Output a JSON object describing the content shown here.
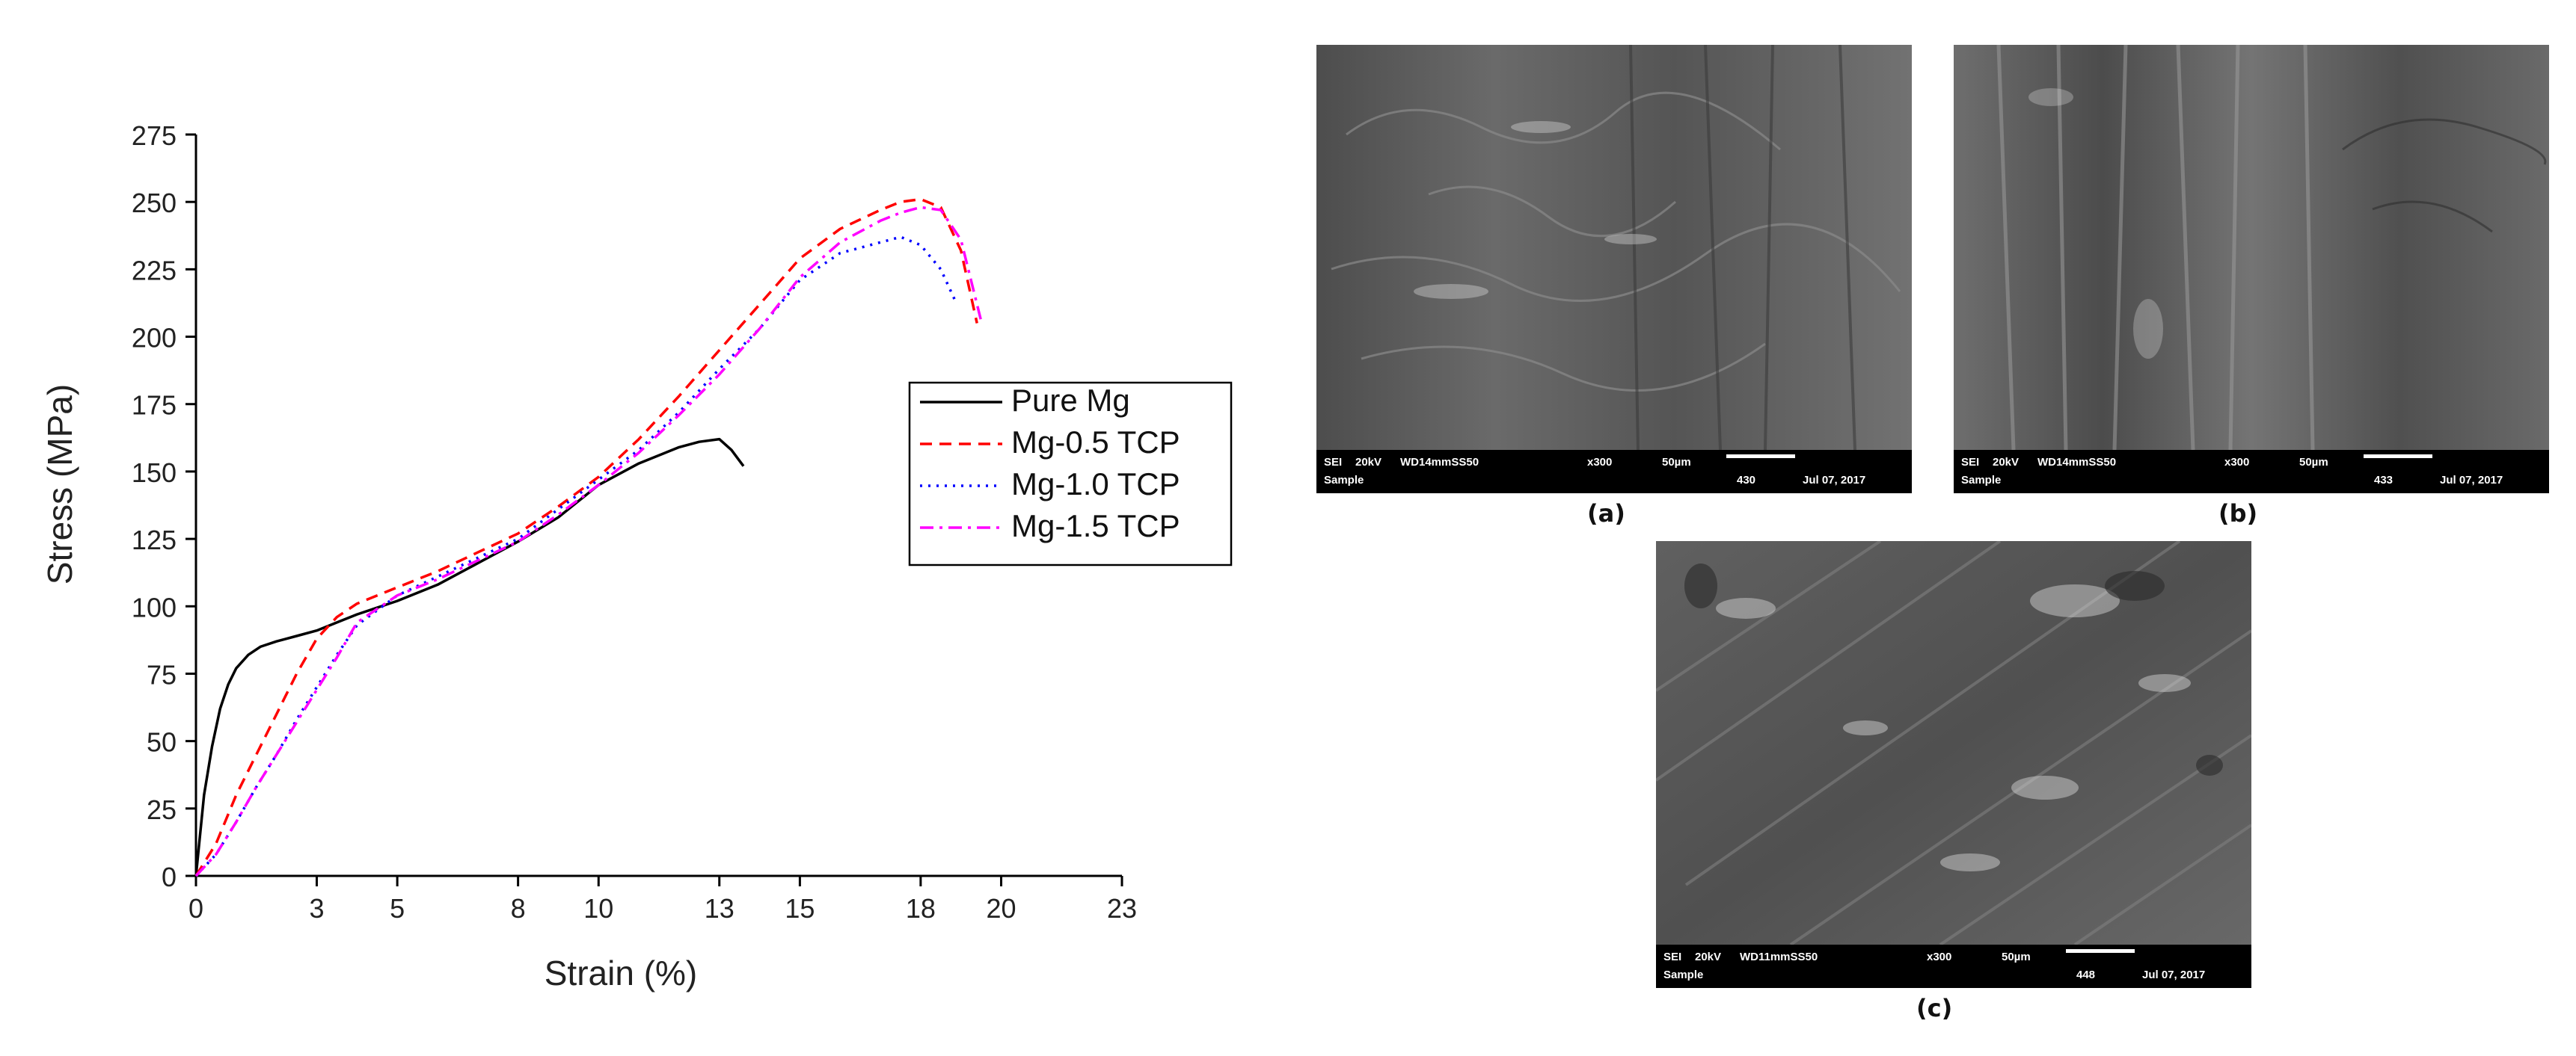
{
  "chart_data": {
    "type": "line",
    "xlabel": "Strain (%)",
    "ylabel": "Stress (MPa)",
    "xlim": [
      0,
      23
    ],
    "ylim": [
      0,
      275
    ],
    "xticks": [
      0,
      3,
      5,
      8,
      10,
      13,
      15,
      18,
      20,
      23
    ],
    "yticks": [
      0,
      25,
      50,
      75,
      100,
      125,
      150,
      175,
      200,
      225,
      250,
      275
    ],
    "grid": false,
    "legend_position": "right",
    "series": [
      {
        "name": "Pure Mg",
        "color": "#000000",
        "line_style": "solid",
        "x": [
          0,
          0.2,
          0.4,
          0.6,
          0.8,
          1.0,
          1.3,
          1.6,
          2.0,
          2.5,
          3.0,
          3.5,
          4.0,
          5.0,
          6.0,
          7.0,
          8.0,
          9.0,
          10.0,
          11.0,
          12.0,
          12.5,
          13.0,
          13.3,
          13.6
        ],
        "y": [
          0,
          30,
          48,
          62,
          71,
          77,
          82,
          85,
          87,
          89,
          91,
          94,
          97,
          102,
          108,
          116,
          124,
          133,
          145,
          153,
          159,
          161,
          162,
          158,
          152
        ]
      },
      {
        "name": "Mg-0.5 TCP",
        "color": "#ff0000",
        "line_style": "dashed",
        "x": [
          0,
          0.5,
          1.0,
          1.5,
          2.0,
          2.5,
          3.0,
          3.5,
          4.0,
          5.0,
          6.0,
          7.0,
          8.0,
          9.0,
          10.0,
          11.0,
          12.0,
          13.0,
          14.0,
          15.0,
          16.0,
          17.0,
          17.5,
          18.0,
          18.5,
          19.0,
          19.4
        ],
        "y": [
          0,
          12,
          30,
          45,
          60,
          75,
          88,
          96,
          101,
          107,
          113,
          120,
          127,
          137,
          148,
          162,
          178,
          195,
          212,
          229,
          240,
          247,
          250,
          251,
          248,
          232,
          205
        ]
      },
      {
        "name": "Mg-1.0 TCP",
        "color": "#0000ff",
        "line_style": "dotted",
        "x": [
          0,
          0.5,
          1.0,
          1.5,
          2.0,
          2.5,
          3.0,
          3.5,
          4.0,
          5.0,
          6.0,
          7.0,
          8.0,
          9.0,
          10.0,
          11.0,
          12.0,
          13.0,
          14.0,
          15.0,
          16.0,
          17.0,
          17.5,
          18.0,
          18.5,
          18.9
        ],
        "y": [
          0,
          8,
          20,
          33,
          45,
          58,
          70,
          82,
          93,
          104,
          111,
          118,
          125,
          136,
          147,
          158,
          172,
          188,
          203,
          221,
          231,
          235,
          237,
          234,
          225,
          212
        ]
      },
      {
        "name": "Mg-1.5 TCP",
        "color": "#ff00ff",
        "line_style": "dash-dot",
        "x": [
          0,
          0.5,
          1.0,
          1.5,
          2.0,
          2.5,
          3.0,
          3.5,
          4.0,
          5.0,
          6.0,
          7.0,
          8.0,
          9.0,
          10.0,
          11.0,
          12.0,
          13.0,
          14.0,
          15.0,
          16.0,
          17.0,
          17.5,
          18.0,
          18.5,
          19.0,
          19.5
        ],
        "y": [
          0,
          8,
          20,
          33,
          45,
          57,
          69,
          81,
          94,
          104,
          110,
          117,
          124,
          134,
          145,
          157,
          171,
          186,
          203,
          222,
          235,
          243,
          246,
          248,
          247,
          236,
          206
        ]
      }
    ]
  },
  "sem_panels": [
    {
      "caption": "(a)",
      "bar": {
        "mode": "SEI",
        "voltage": "20kV",
        "wd": "WD14mmSS50",
        "mag": "x300",
        "scale": "50µm",
        "number": "430",
        "date": "Jul 07, 2017",
        "label": "Sample"
      }
    },
    {
      "caption": "(b)",
      "bar": {
        "mode": "SEI",
        "voltage": "20kV",
        "wd": "WD14mmSS50",
        "mag": "x300",
        "scale": "50µm",
        "number": "433",
        "date": "Jul 07, 2017",
        "label": "Sample"
      }
    },
    {
      "caption": "(c)",
      "bar": {
        "mode": "SEI",
        "voltage": "20kV",
        "wd": "WD11mmSS50",
        "mag": "x300",
        "scale": "50µm",
        "number": "448",
        "date": "Jul 07, 2017",
        "label": "Sample"
      }
    }
  ]
}
